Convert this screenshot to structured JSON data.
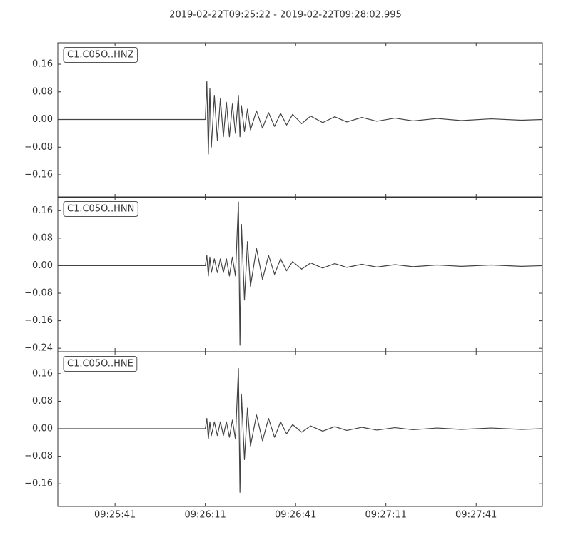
{
  "title": "2019-02-22T09:25:22  -  2019-02-22T09:28:02.995",
  "chart_data": [
    {
      "type": "line",
      "title": "C1.C05O..HNZ",
      "color": "#444444",
      "xlim": [
        "09:25:22",
        "09:28:02.995"
      ],
      "xticks": [
        "09:25:41",
        "09:26:11",
        "09:26:41",
        "09:27:11",
        "09:27:41"
      ],
      "ylim": [
        -0.226,
        0.222
      ],
      "yticks": [
        {
          "value": -0.16,
          "label": "−0.16"
        },
        {
          "value": -0.08,
          "label": "−0.08"
        },
        {
          "value": 0,
          "label": "0.00"
        },
        0.08,
        0.16
      ],
      "x": [
        "09:25:22",
        "09:26:11",
        "09:26:11.5",
        "09:26:12",
        "09:26:12.5",
        "09:26:13",
        "09:26:14",
        "09:26:15",
        "09:26:16",
        "09:26:17",
        "09:26:18",
        "09:26:19",
        "09:26:20",
        "09:26:21",
        "09:26:22",
        "09:26:22.5",
        "09:26:23",
        "09:26:24",
        "09:26:25",
        "09:26:26",
        "09:26:28",
        "09:26:30",
        "09:26:32",
        "09:26:34",
        "09:26:36",
        "09:26:38",
        "09:26:40",
        "09:26:43",
        "09:26:46",
        "09:26:50",
        "09:26:54",
        "09:26:58",
        "09:27:03",
        "09:27:08",
        "09:27:14",
        "09:27:20",
        "09:27:28",
        "09:27:36",
        "09:27:46",
        "09:27:56",
        "09:28:02.995"
      ],
      "values": [
        0,
        0,
        0.11,
        -0.1,
        0.09,
        -0.08,
        0.07,
        -0.06,
        0.06,
        -0.05,
        0.05,
        -0.05,
        0.045,
        -0.04,
        0.07,
        -0.05,
        0.04,
        -0.035,
        0.03,
        -0.03,
        0.025,
        -0.025,
        0.02,
        -0.02,
        0.018,
        -0.016,
        0.015,
        -0.012,
        0.01,
        -0.009,
        0.008,
        -0.007,
        0.006,
        -0.005,
        0.004,
        -0.004,
        0.003,
        -0.003,
        0.002,
        -0.002,
        0
      ]
    },
    {
      "type": "line",
      "title": "C1.C05O..HNN",
      "color": "#444444",
      "xlim": [
        "09:25:22",
        "09:28:02.995"
      ],
      "xticks": [
        "09:25:41",
        "09:26:11",
        "09:26:41",
        "09:27:11",
        "09:27:41"
      ],
      "ylim": [
        -0.25,
        0.2
      ],
      "yticks": [
        {
          "value": -0.24,
          "label": "−0.24"
        },
        {
          "value": -0.16,
          "label": "−0.16"
        },
        {
          "value": -0.08,
          "label": "−0.08"
        },
        {
          "value": 0,
          "label": "0.00"
        },
        0.08,
        0.16
      ],
      "x": [
        "09:25:22",
        "09:26:11",
        "09:26:11.5",
        "09:26:12",
        "09:26:12.5",
        "09:26:13",
        "09:26:14",
        "09:26:15",
        "09:26:16",
        "09:26:17",
        "09:26:18",
        "09:26:19",
        "09:26:20",
        "09:26:21",
        "09:26:22",
        "09:26:22.5",
        "09:26:23",
        "09:26:24",
        "09:26:25",
        "09:26:26",
        "09:26:28",
        "09:26:30",
        "09:26:32",
        "09:26:34",
        "09:26:36",
        "09:26:38",
        "09:26:40",
        "09:26:43",
        "09:26:46",
        "09:26:50",
        "09:26:54",
        "09:26:58",
        "09:27:03",
        "09:27:08",
        "09:27:14",
        "09:27:20",
        "09:27:28",
        "09:27:36",
        "09:27:46",
        "09:27:56",
        "09:28:02.995"
      ],
      "values": [
        0,
        0,
        0.03,
        -0.03,
        0.025,
        -0.02,
        0.02,
        -0.02,
        0.02,
        -0.02,
        0.02,
        -0.03,
        0.025,
        -0.03,
        0.185,
        -0.231,
        0.12,
        -0.1,
        0.07,
        -0.06,
        0.05,
        -0.04,
        0.03,
        -0.025,
        0.02,
        -0.015,
        0.012,
        -0.01,
        0.008,
        -0.007,
        0.006,
        -0.005,
        0.004,
        -0.004,
        0.003,
        -0.003,
        0.002,
        -0.002,
        0.002,
        -0.002,
        0
      ]
    },
    {
      "type": "line",
      "title": "C1.C05O..HNE",
      "color": "#444444",
      "xlim": [
        "09:25:22",
        "09:28:02.995"
      ],
      "xticks": [
        "09:25:41",
        "09:26:11",
        "09:26:41",
        "09:27:11",
        "09:27:41"
      ],
      "ylim": [
        -0.226,
        0.224
      ],
      "yticks": [
        {
          "value": -0.16,
          "label": "−0.16"
        },
        {
          "value": -0.08,
          "label": "−0.08"
        },
        {
          "value": 0,
          "label": "0.00"
        },
        0.08,
        0.16
      ],
      "x": [
        "09:25:22",
        "09:26:11",
        "09:26:11.5",
        "09:26:12",
        "09:26:12.5",
        "09:26:13",
        "09:26:14",
        "09:26:15",
        "09:26:16",
        "09:26:17",
        "09:26:18",
        "09:26:19",
        "09:26:20",
        "09:26:21",
        "09:26:22",
        "09:26:22.5",
        "09:26:23",
        "09:26:24",
        "09:26:25",
        "09:26:26",
        "09:26:28",
        "09:26:30",
        "09:26:32",
        "09:26:34",
        "09:26:36",
        "09:26:38",
        "09:26:40",
        "09:26:43",
        "09:26:46",
        "09:26:50",
        "09:26:54",
        "09:26:58",
        "09:27:03",
        "09:27:08",
        "09:27:14",
        "09:27:20",
        "09:27:28",
        "09:27:36",
        "09:27:46",
        "09:27:56",
        "09:28:02.995"
      ],
      "values": [
        0,
        0,
        0.03,
        -0.03,
        0.02,
        -0.02,
        0.02,
        -0.02,
        0.02,
        -0.02,
        0.02,
        -0.025,
        0.025,
        -0.03,
        0.175,
        -0.185,
        0.1,
        -0.09,
        0.06,
        -0.05,
        0.04,
        -0.035,
        0.03,
        -0.025,
        0.02,
        -0.015,
        0.012,
        -0.01,
        0.008,
        -0.007,
        0.006,
        -0.005,
        0.004,
        -0.004,
        0.003,
        -0.003,
        0.002,
        -0.002,
        0.002,
        -0.002,
        0
      ]
    }
  ]
}
